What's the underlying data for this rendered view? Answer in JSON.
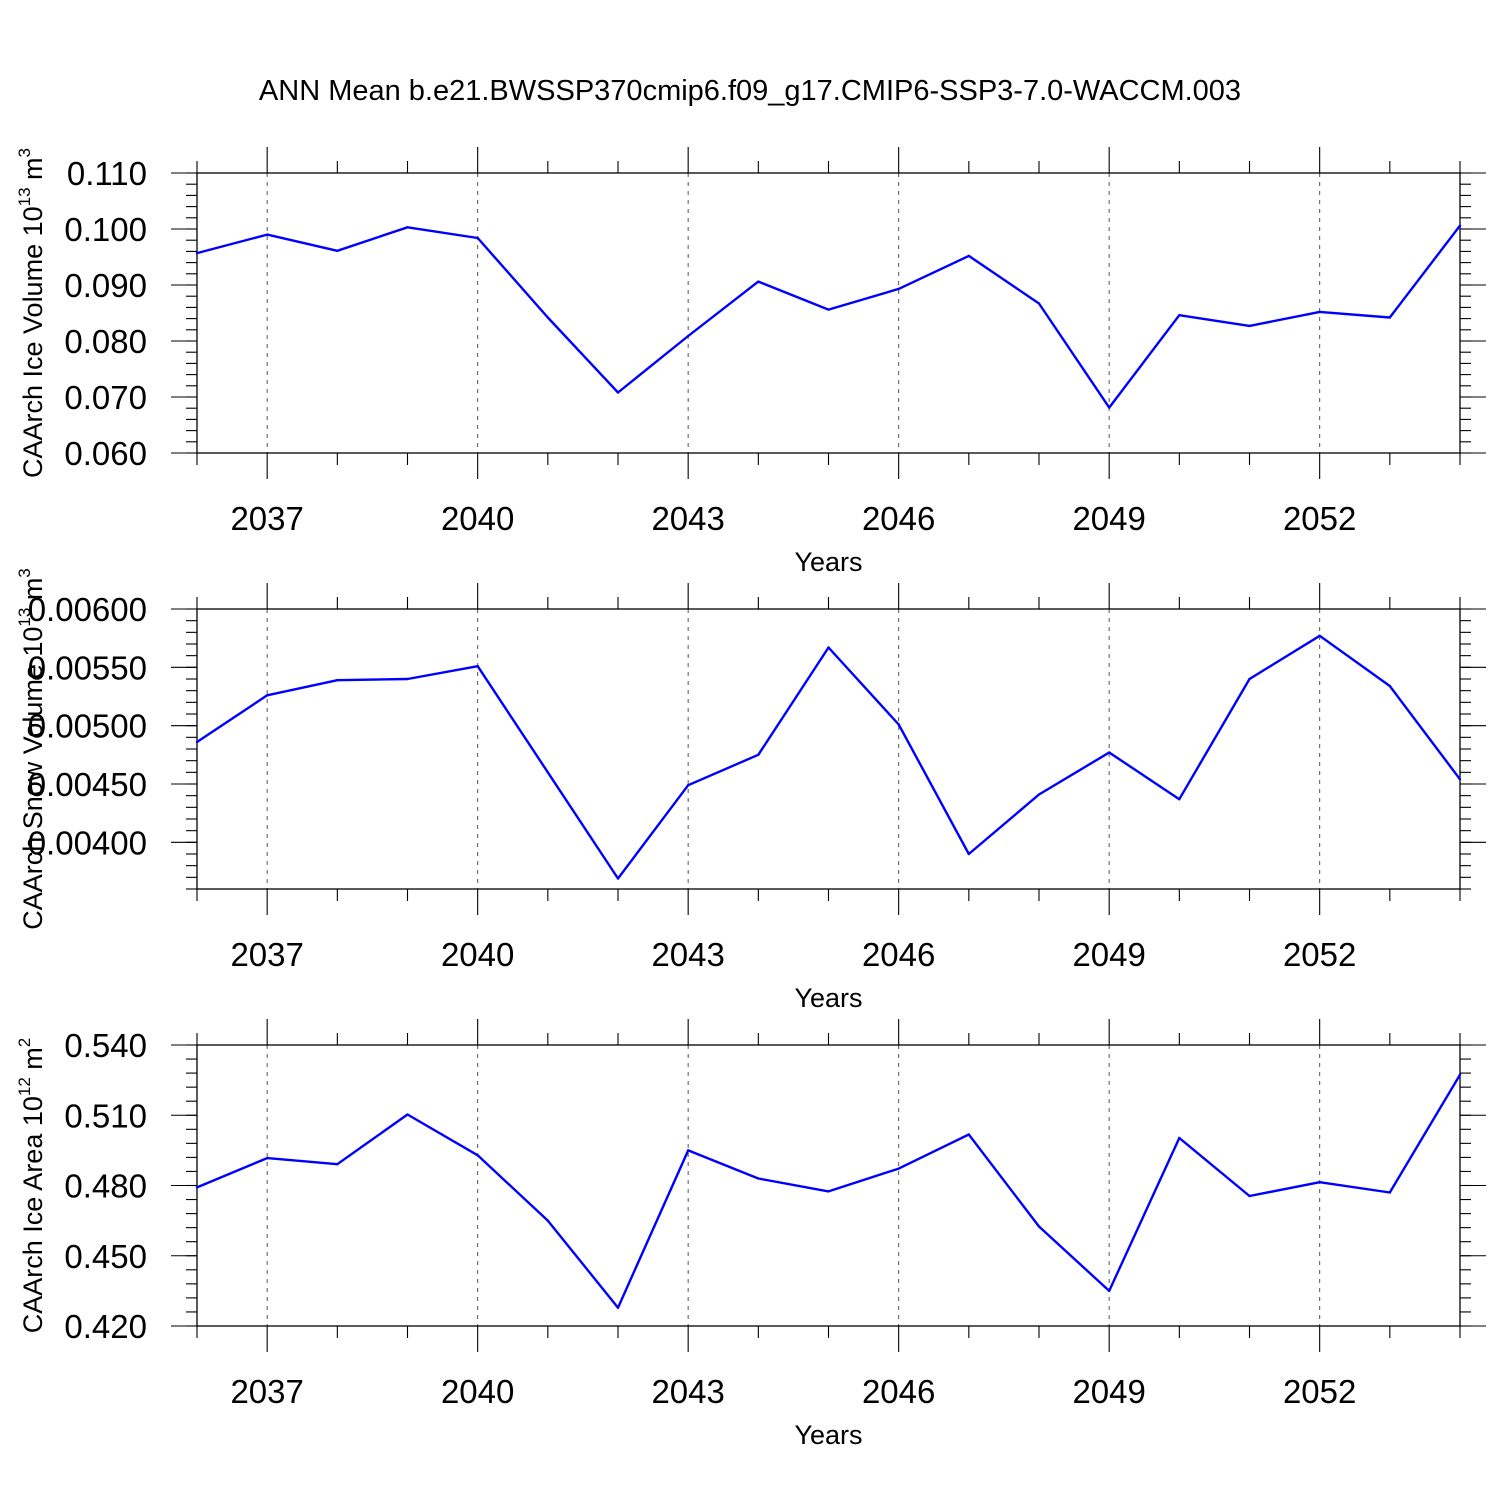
{
  "title": "ANN Mean b.e21.BWSSP370cmip6.f09_g17.CMIP6-SSP3-7.0-WACCM.003",
  "colors": {
    "series": "#0000ff",
    "axis": "#000000",
    "grid": "#555555"
  },
  "chart_data": [
    {
      "type": "line",
      "xlabel": "Years",
      "ylabel": {
        "base": "CAArch Ice Volume 10",
        "exp": "13",
        "unit": " m",
        "unit_exp": "3"
      },
      "xlim": [
        2036,
        2054
      ],
      "ylim": [
        0.06,
        0.11
      ],
      "x_major_ticks": [
        2037,
        2040,
        2043,
        2046,
        2049,
        2052
      ],
      "x_tick_labels": [
        "2037",
        "2040",
        "2043",
        "2046",
        "2049",
        "2052"
      ],
      "y_ticks": [
        0.06,
        0.07,
        0.08,
        0.09,
        0.1,
        0.11
      ],
      "y_tick_labels": [
        "0.060",
        "0.070",
        "0.080",
        "0.090",
        "0.100",
        "0.110"
      ],
      "y_minor_step": 0.002,
      "grid": "x-major dashed",
      "x": [
        2036,
        2037,
        2038,
        2039,
        2040,
        2041,
        2042,
        2043,
        2044,
        2045,
        2046,
        2047,
        2048,
        2049,
        2050,
        2051,
        2052,
        2053,
        2054
      ],
      "values": [
        0.0957,
        0.099,
        0.0961,
        0.1003,
        0.0984,
        0.0842,
        0.0708,
        0.0809,
        0.0906,
        0.0856,
        0.0893,
        0.0952,
        0.0867,
        0.0681,
        0.0846,
        0.0827,
        0.0852,
        0.0842,
        0.1006
      ]
    },
    {
      "type": "line",
      "xlabel": "Years",
      "ylabel": {
        "base": "CAArch Snow Volume 10",
        "exp": "13",
        "unit": " m",
        "unit_exp": "3"
      },
      "xlim": [
        2036,
        2054
      ],
      "ylim": [
        0.0036,
        0.006
      ],
      "x_major_ticks": [
        2037,
        2040,
        2043,
        2046,
        2049,
        2052
      ],
      "x_tick_labels": [
        "2037",
        "2040",
        "2043",
        "2046",
        "2049",
        "2052"
      ],
      "y_ticks": [
        0.004,
        0.0045,
        0.005,
        0.0055,
        0.006
      ],
      "y_tick_labels": [
        "0.00400",
        "0.00450",
        "0.00500",
        "0.00550",
        "0.00600"
      ],
      "y_minor_step": 0.0001,
      "grid": "x-major dashed",
      "x": [
        2036,
        2037,
        2038,
        2039,
        2040,
        2041,
        2042,
        2043,
        2044,
        2045,
        2046,
        2047,
        2048,
        2049,
        2050,
        2051,
        2052,
        2053,
        2054
      ],
      "values": [
        0.00486,
        0.00526,
        0.00539,
        0.0054,
        0.00551,
        0.0046,
        0.00369,
        0.00449,
        0.00475,
        0.00567,
        0.00501,
        0.0039,
        0.00441,
        0.00477,
        0.00437,
        0.0054,
        0.00577,
        0.00534,
        0.00454
      ]
    },
    {
      "type": "line",
      "xlabel": "Years",
      "ylabel": {
        "base": "CAArch Ice Area 10",
        "exp": "12",
        "unit": " m",
        "unit_exp": "2"
      },
      "xlim": [
        2036,
        2054
      ],
      "ylim": [
        0.42,
        0.54
      ],
      "x_major_ticks": [
        2037,
        2040,
        2043,
        2046,
        2049,
        2052
      ],
      "x_tick_labels": [
        "2037",
        "2040",
        "2043",
        "2046",
        "2049",
        "2052"
      ],
      "y_ticks": [
        0.42,
        0.45,
        0.48,
        0.51,
        0.54
      ],
      "y_tick_labels": [
        "0.420",
        "0.450",
        "0.480",
        "0.510",
        "0.540"
      ],
      "y_minor_step": 0.006,
      "grid": "x-major dashed",
      "x": [
        2036,
        2037,
        2038,
        2039,
        2040,
        2041,
        2042,
        2043,
        2044,
        2045,
        2046,
        2047,
        2048,
        2049,
        2050,
        2051,
        2052,
        2053,
        2054
      ],
      "values": [
        0.4792,
        0.4917,
        0.4891,
        0.5103,
        0.4929,
        0.465,
        0.4278,
        0.495,
        0.483,
        0.4775,
        0.4872,
        0.5018,
        0.4625,
        0.435,
        0.5003,
        0.4755,
        0.4814,
        0.477,
        0.5273
      ]
    }
  ]
}
